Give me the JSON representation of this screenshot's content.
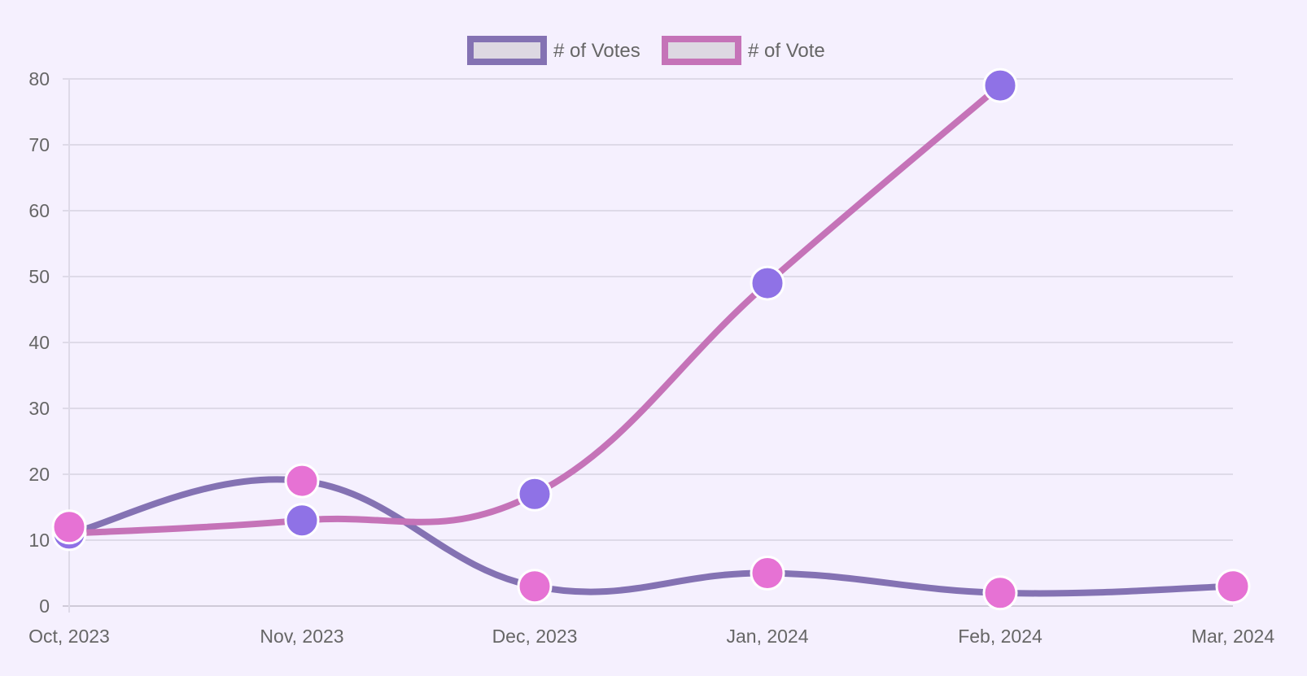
{
  "chart_data": {
    "type": "line",
    "title": "",
    "xlabel": "",
    "ylabel": "",
    "categories": [
      "Oct, 2023",
      "Nov, 2023",
      "Dec, 2023",
      "Jan, 2024",
      "Feb, 2024",
      "Mar, 2024"
    ],
    "ylim": [
      0,
      80
    ],
    "y_ticks": [
      0,
      10,
      20,
      30,
      40,
      50,
      60,
      70,
      80
    ],
    "grid": true,
    "legend_position": "top",
    "smooth": true,
    "series": [
      {
        "name": "# of Votes",
        "line_color": "#8472b3",
        "point_color": "#8f72e6",
        "point_indices": [
          0,
          1,
          2,
          4
        ],
        "points": [
          {
            "x": "Oct, 2023",
            "y": 11
          },
          {
            "x": "Nov, 2023",
            "y": 19
          },
          {
            "x": "Dec, 2023",
            "y": 3
          },
          {
            "x": "Jan, 2024",
            "y": 5
          },
          {
            "x": "Feb, 2024",
            "y": 2
          },
          {
            "x": "Mar, 2024",
            "y": 3
          }
        ]
      },
      {
        "name": "# of Vote",
        "line_color": "#c573b8",
        "point_color": "#e672d4",
        "point_indices": [
          0,
          1,
          2,
          3
        ],
        "points": [
          {
            "x": "Oct, 2023",
            "y": 11
          },
          {
            "x": "Nov, 2023",
            "y": 13
          },
          {
            "x": "Dec, 2023",
            "y": 17
          },
          {
            "x": "Jan, 2024",
            "y": 49
          },
          {
            "x": "Feb, 2024",
            "y": 79
          }
        ]
      }
    ],
    "extra_points": [
      {
        "x": "Oct, 2023",
        "y": 12,
        "color": "#e672d4"
      },
      {
        "x": "Nov, 2023",
        "y": 19,
        "color": "#e672d4"
      },
      {
        "x": "Dec, 2023",
        "y": 3,
        "color": "#e672d4"
      },
      {
        "x": "Jan, 2024",
        "y": 5,
        "color": "#e672d4"
      },
      {
        "x": "Feb, 2024",
        "y": 2,
        "color": "#e672d4"
      },
      {
        "x": "Mar, 2024",
        "y": 3,
        "color": "#e672d4"
      },
      {
        "x": "Nov, 2023",
        "y": 13,
        "color": "#8f72e6"
      },
      {
        "x": "Dec, 2023",
        "y": 17,
        "color": "#8f72e6"
      },
      {
        "x": "Jan, 2024",
        "y": 49,
        "color": "#8f72e6"
      },
      {
        "x": "Feb, 2024",
        "y": 79,
        "color": "#8f72e6"
      }
    ]
  },
  "colors": {
    "background": "#f5f0fe",
    "grid": "#dedae8",
    "axis": "#cfcad8",
    "text": "#666666",
    "legend_fill": "#ddd8e2"
  }
}
